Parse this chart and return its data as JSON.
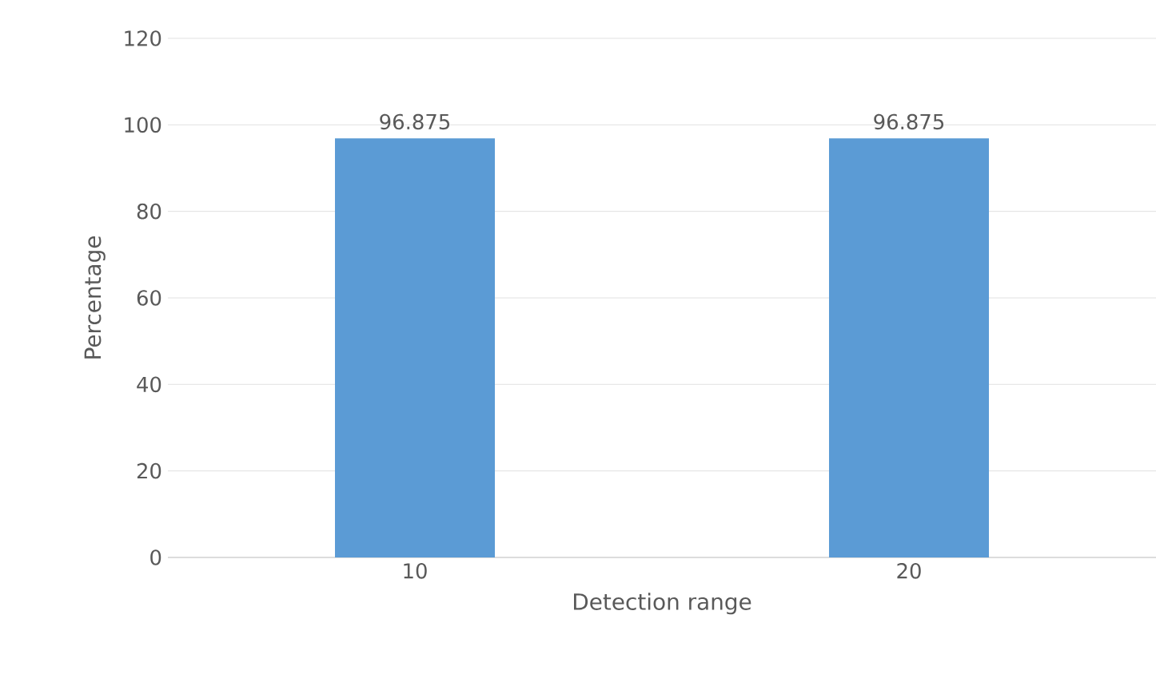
{
  "chart_data": {
    "type": "bar",
    "xlabel": "Detection range",
    "ylabel": "Percentage",
    "categories": [
      "10",
      "20"
    ],
    "values": [
      96.875,
      96.875
    ],
    "color": "#5b9bd5",
    "ylim": [
      0,
      120
    ],
    "yticks": [
      0,
      20,
      40,
      60,
      80,
      100,
      120
    ],
    "grid": "y",
    "data_labels": true
  }
}
